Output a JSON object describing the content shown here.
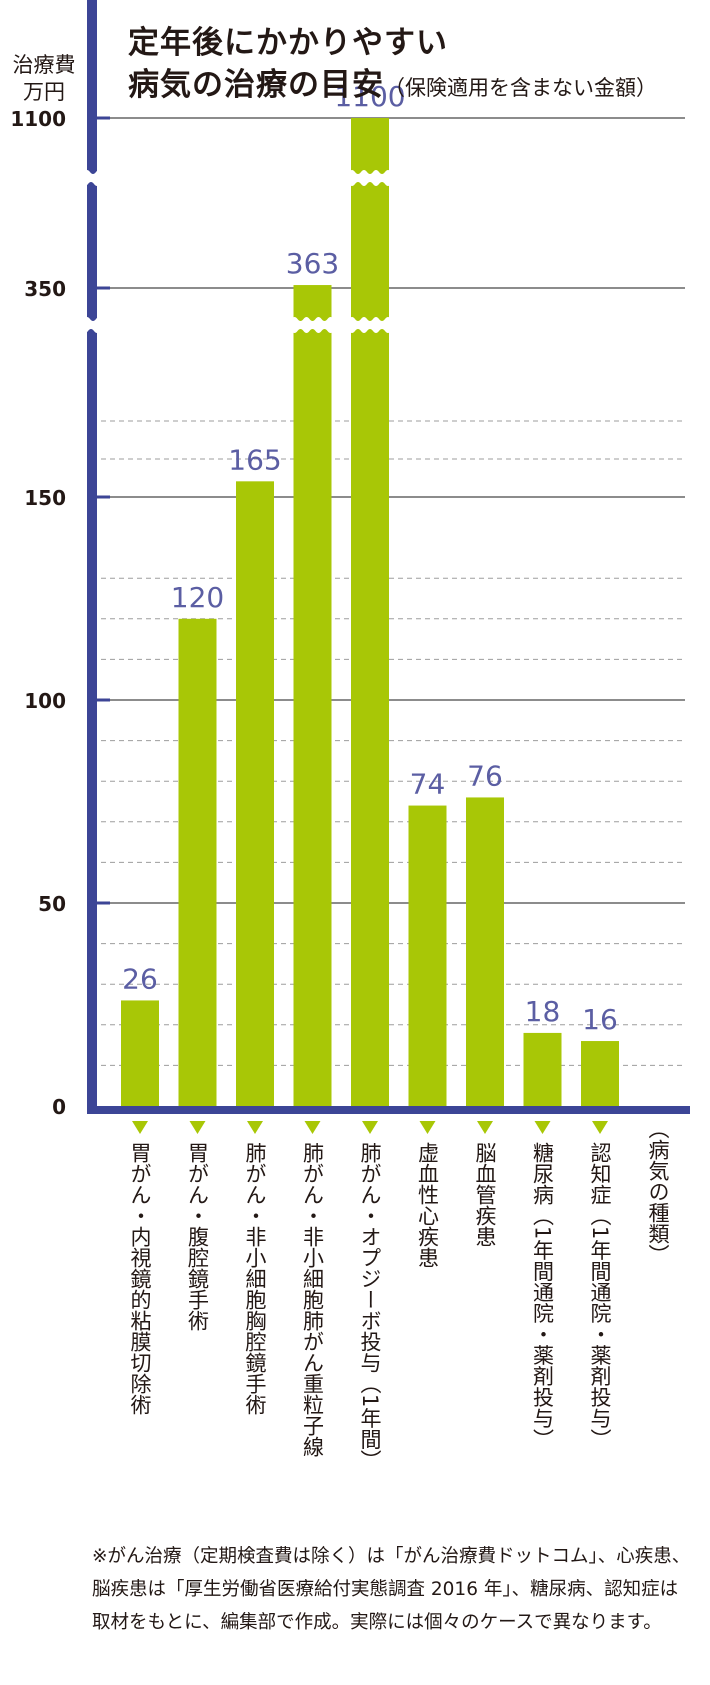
{
  "chart_data": {
    "type": "bar",
    "title": "定年後にかかりやすい 病気の治療の目安",
    "title_line1": "定年後にかかりやすい",
    "title_line2": "病気の治療の目安",
    "subtitle": "（保険適用を含まない金額）",
    "ylabel": "治療費 万円",
    "ylabel_line1": "治療費",
    "ylabel_line2": "万円",
    "xlabel": "（病気の種類）",
    "y_ticks": [
      "0",
      "50",
      "100",
      "150",
      "350",
      "1100"
    ],
    "axis_breaks": true,
    "grid": "solid major lines, dashed minor lines",
    "bar_color": "#a8c706",
    "axis_color": "#3c4596",
    "label_color": "#5b5ea3",
    "categories": [
      "胃がん・内視鏡的粘膜切除術",
      "胃がん・腹腔鏡手術",
      "肺がん・非小細胞胸腔鏡手術",
      "肺がん・非小細胞肺がん重粒子線",
      "肺がん・オプジーボ投与（1年間）",
      "虚血性心疾患",
      "脳血管疾患",
      "糖尿病（1年間通院・薬剤投与）",
      "認知症（1年間通院・薬剤投与）"
    ],
    "values": [
      26,
      120,
      165,
      363,
      1100,
      74,
      76,
      18,
      16
    ],
    "data_labels": [
      "26",
      "120",
      "165",
      "363",
      "1100",
      "74",
      "76",
      "18",
      "16"
    ]
  },
  "note": "※がん治療（定期検査費は除く）は「がん治療費ドットコム」、心疾患、脳疾患は「厚生労働省医療給付実態調査 2016 年」、糖尿病、認知症は取材をもとに、編集部で作成。実際には個々のケースで異なります。"
}
